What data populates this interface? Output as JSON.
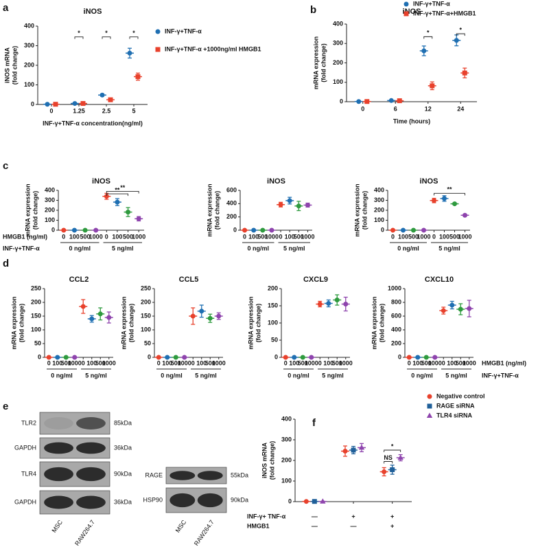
{
  "chart_data": [
    {
      "type": "dot",
      "panel": "a",
      "title": "iNOS",
      "ylabel": [
        "iNOS mRNA",
        "(fold change)"
      ],
      "xlabel": "INF-γ+TNF-α concentration(ng/ml)",
      "categories": [
        "0",
        "1.25",
        "2.5",
        "5"
      ],
      "ylim": [
        0,
        400
      ],
      "yticks": [
        0,
        100,
        200,
        300,
        400
      ],
      "series": [
        {
          "name": "INF-γ+TNF-α",
          "color": "#1f6fb2",
          "marker": "circle",
          "values": [
            1,
            5,
            48,
            262
          ],
          "errors": [
            1,
            2,
            6,
            25
          ]
        },
        {
          "name": "INF-γ+TNF-α +1000ng/ml HMGB1",
          "color": "#e8412c",
          "marker": "square",
          "values": [
            1,
            5,
            24,
            142
          ],
          "errors": [
            1,
            2,
            4,
            18
          ]
        }
      ],
      "annotations": [
        {
          "text": "*",
          "from": [
            1,
            0
          ],
          "to": [
            1,
            1
          ],
          "y": 345
        },
        {
          "text": "*",
          "from": [
            2,
            0
          ],
          "to": [
            2,
            1
          ],
          "y": 345
        },
        {
          "text": "*",
          "from": [
            3,
            0
          ],
          "to": [
            3,
            1
          ],
          "y": 345
        }
      ]
    },
    {
      "type": "dot",
      "panel": "b",
      "title": "iNOS",
      "ylabel": [
        "mRNA expression",
        "(fold change)"
      ],
      "xlabel": "Time (hours)",
      "categories": [
        "0",
        "6",
        "12",
        "24"
      ],
      "ylim": [
        0,
        400
      ],
      "yticks": [
        0,
        100,
        200,
        300,
        400
      ],
      "series": [
        {
          "name": "INF-γ+TNF-α",
          "color": "#1f6fb2",
          "marker": "circle",
          "values": [
            1,
            6,
            262,
            316
          ],
          "errors": [
            2,
            2,
            25,
            28
          ]
        },
        {
          "name": "INF-γ+TNF-α+HMGB1",
          "color": "#e8412c",
          "marker": "square",
          "values": [
            1,
            5,
            82,
            148
          ],
          "errors": [
            1,
            2,
            20,
            25
          ]
        }
      ],
      "annotations": [
        {
          "text": "*",
          "from": [
            2,
            0
          ],
          "to": [
            2,
            1
          ],
          "y": 335
        },
        {
          "text": "*",
          "from": [
            3,
            0
          ],
          "to": [
            3,
            1
          ],
          "y": 350
        }
      ]
    },
    {
      "type": "dot",
      "panel": "c",
      "title": "iNOS",
      "ylabel": [
        "mRNA expression",
        "(fold change)"
      ],
      "categories": [
        "0",
        "100",
        "500",
        "1000",
        "0",
        "100",
        "500",
        "1000"
      ],
      "groups": [
        "0 ng/ml",
        "5 ng/ml"
      ],
      "row_labels": [
        "HMGB1 (ng/ml)",
        "INF-γ+TNF-α"
      ],
      "ylim": [
        0,
        400
      ],
      "yticks": [
        0,
        100,
        200,
        300,
        400
      ],
      "series": [
        {
          "colors": [
            "#e8412c",
            "#1f6fb2",
            "#2e9a3e",
            "#8e44ad",
            "#e8412c",
            "#1f6fb2",
            "#2e9a3e",
            "#8e44ad"
          ],
          "marker": "circle",
          "values": [
            0,
            0,
            0,
            0,
            340,
            282,
            182,
            115
          ],
          "errors": [
            2,
            2,
            2,
            2,
            30,
            35,
            45,
            22
          ]
        }
      ],
      "annotations": [
        {
          "text": "**",
          "from": [
            4,
            0
          ],
          "to": [
            7,
            0
          ],
          "y": 390
        },
        {
          "text": "**",
          "from": [
            4,
            0
          ],
          "to": [
            6,
            0
          ],
          "y": 365
        }
      ]
    },
    {
      "type": "dot",
      "title": "iNOS",
      "ylabel": [
        "mRNA expression",
        "(fold change)"
      ],
      "categories": [
        "0",
        "100",
        "500",
        "1000",
        "0",
        "100",
        "500",
        "1000"
      ],
      "groups": [
        "0 ng/ml",
        "5 ng/ml"
      ],
      "ylim": [
        0,
        600
      ],
      "yticks": [
        0,
        200,
        400,
        600
      ],
      "series": [
        {
          "colors": [
            "#e8412c",
            "#1f6fb2",
            "#2e9a3e",
            "#8e44ad",
            "#e8412c",
            "#1f6fb2",
            "#2e9a3e",
            "#8e44ad"
          ],
          "marker": "circle",
          "values": [
            0,
            0,
            0,
            0,
            385,
            445,
            365,
            378
          ],
          "errors": [
            2,
            2,
            2,
            2,
            35,
            50,
            70,
            30
          ]
        }
      ]
    },
    {
      "type": "dot",
      "title": "iNOS",
      "ylabel": [
        "mRNA expression",
        "(fold change)"
      ],
      "categories": [
        "0",
        "100",
        "500",
        "1000",
        "0",
        "100",
        "500",
        "1000"
      ],
      "groups": [
        "0 ng/ml",
        "5 ng/ml"
      ],
      "ylim": [
        0,
        400
      ],
      "yticks": [
        0,
        100,
        200,
        300,
        400
      ],
      "series": [
        {
          "colors": [
            "#e8412c",
            "#1f6fb2",
            "#2e9a3e",
            "#8e44ad",
            "#e8412c",
            "#1f6fb2",
            "#2e9a3e",
            "#8e44ad"
          ],
          "marker": "circle",
          "values": [
            0,
            0,
            0,
            0,
            298,
            318,
            265,
            150
          ],
          "errors": [
            2,
            2,
            2,
            2,
            22,
            28,
            8,
            10
          ]
        }
      ],
      "annotations": [
        {
          "text": "**",
          "from": [
            4,
            0
          ],
          "to": [
            7,
            0
          ],
          "y": 370
        }
      ]
    },
    {
      "type": "dot",
      "panel": "d",
      "title": "CCL2",
      "ylabel": [
        "mRNA expression",
        "(fold change)"
      ],
      "categories": [
        "0",
        "100",
        "500",
        "1000",
        "0",
        "100",
        "500",
        "1000"
      ],
      "groups": [
        "0 ng/ml",
        "5 ng/ml"
      ],
      "ylim": [
        0,
        250
      ],
      "yticks": [
        0,
        50,
        100,
        150,
        200,
        250
      ],
      "series": [
        {
          "colors": [
            "#e8412c",
            "#1f6fb2",
            "#2e9a3e",
            "#8e44ad",
            "#e8412c",
            "#1f6fb2",
            "#2e9a3e",
            "#8e44ad"
          ],
          "marker": "circle",
          "values": [
            0,
            0,
            0,
            0,
            185,
            140,
            158,
            145
          ],
          "errors": [
            2,
            2,
            2,
            2,
            25,
            12,
            22,
            20
          ]
        }
      ]
    },
    {
      "type": "dot",
      "title": "CCL5",
      "ylabel": [
        "mRNA expression",
        "(fold change)"
      ],
      "categories": [
        "0",
        "100",
        "500",
        "1000",
        "0",
        "100",
        "500",
        "1000"
      ],
      "groups": [
        "0 ng/ml",
        "5 ng/ml"
      ],
      "ylim": [
        0,
        250
      ],
      "yticks": [
        0,
        50,
        100,
        150,
        200,
        250
      ],
      "series": [
        {
          "colors": [
            "#e8412c",
            "#1f6fb2",
            "#2e9a3e",
            "#8e44ad",
            "#e8412c",
            "#1f6fb2",
            "#2e9a3e",
            "#8e44ad"
          ],
          "marker": "circle",
          "values": [
            0,
            0,
            0,
            0,
            150,
            168,
            142,
            150
          ],
          "errors": [
            2,
            2,
            2,
            2,
            30,
            22,
            15,
            12
          ]
        }
      ]
    },
    {
      "type": "dot",
      "title": "CXCL9",
      "ylabel": [
        "mRNA expression",
        "(fold change)"
      ],
      "categories": [
        "0",
        "100",
        "500",
        "1000",
        "0",
        "100",
        "500",
        "1000"
      ],
      "groups": [
        "0 ng/ml",
        "5 ng/ml"
      ],
      "ylim": [
        0,
        200
      ],
      "yticks": [
        0,
        50,
        100,
        150,
        200
      ],
      "series": [
        {
          "colors": [
            "#e8412c",
            "#1f6fb2",
            "#2e9a3e",
            "#8e44ad",
            "#e8412c",
            "#1f6fb2",
            "#2e9a3e",
            "#8e44ad"
          ],
          "marker": "circle",
          "values": [
            0,
            0,
            0,
            0,
            155,
            157,
            167,
            155
          ],
          "errors": [
            2,
            2,
            2,
            2,
            8,
            10,
            15,
            20
          ]
        }
      ]
    },
    {
      "type": "dot",
      "title": "CXCL10",
      "ylabel": [
        "mRNA expression",
        "(fold change)"
      ],
      "categories": [
        "0",
        "100",
        "500",
        "1000",
        "0",
        "100",
        "500",
        "1000"
      ],
      "groups": [
        "0 ng/ml",
        "5 ng/ml"
      ],
      "row_labels": [
        "HMGB1 (ng/ml)",
        "INF-γ+TNF-α"
      ],
      "row_labels_side": "right",
      "ylim": [
        0,
        1000
      ],
      "yticks": [
        0,
        200,
        400,
        600,
        800,
        1000
      ],
      "series": [
        {
          "colors": [
            "#e8412c",
            "#1f6fb2",
            "#2e9a3e",
            "#8e44ad",
            "#e8412c",
            "#1f6fb2",
            "#2e9a3e",
            "#8e44ad"
          ],
          "marker": "circle",
          "values": [
            0,
            0,
            0,
            0,
            680,
            760,
            700,
            710
          ],
          "errors": [
            5,
            5,
            5,
            5,
            50,
            55,
            80,
            120
          ]
        }
      ]
    },
    {
      "type": "dot",
      "panel": "f",
      "ylabel": [
        "iNOS mRNA",
        "(fold change)"
      ],
      "categories": [
        "—",
        "+",
        "+"
      ],
      "categories2": [
        "—",
        "—",
        "+"
      ],
      "row_labels": [
        "INF-γ+ TNF-α",
        "HMGB1"
      ],
      "ylim": [
        0,
        400
      ],
      "yticks": [
        0,
        100,
        200,
        300,
        400
      ],
      "series": [
        {
          "name": "Negative control",
          "color": "#e8412c",
          "marker": "circle",
          "values": [
            1,
            245,
            145
          ],
          "errors": [
            1,
            25,
            20
          ]
        },
        {
          "name": "RAGE siRNA",
          "color": "#1f5f99",
          "marker": "square",
          "values": [
            1,
            250,
            155
          ],
          "errors": [
            1,
            18,
            22
          ]
        },
        {
          "name": "TLR4 siRNA",
          "color": "#8e44ad",
          "marker": "triangle",
          "values": [
            1,
            262,
            213
          ],
          "errors": [
            1,
            20,
            15
          ]
        }
      ],
      "annotations": [
        {
          "text": "NS",
          "from": [
            2,
            0
          ],
          "to": [
            2,
            1
          ],
          "y": 195
        },
        {
          "text": "*",
          "from": [
            2,
            0
          ],
          "to": [
            2,
            2
          ],
          "y": 250
        }
      ]
    }
  ],
  "blots": {
    "panel": "e",
    "left": {
      "rows": [
        {
          "label": "TLR2",
          "size": "85kDa"
        },
        {
          "label": "GAPDH",
          "size": "36kDa"
        },
        {
          "label": "TLR4",
          "size": "90kDa"
        },
        {
          "label": "GAPDH",
          "size": "36kDa"
        }
      ],
      "lanes": [
        "MSC",
        "RAW264.7"
      ]
    },
    "right": {
      "rows": [
        {
          "label": "RAGE",
          "size": "55kDa"
        },
        {
          "label": "HSP90",
          "size": "90kDa"
        }
      ],
      "lanes": [
        "MSC",
        "RAW264.7"
      ]
    }
  }
}
